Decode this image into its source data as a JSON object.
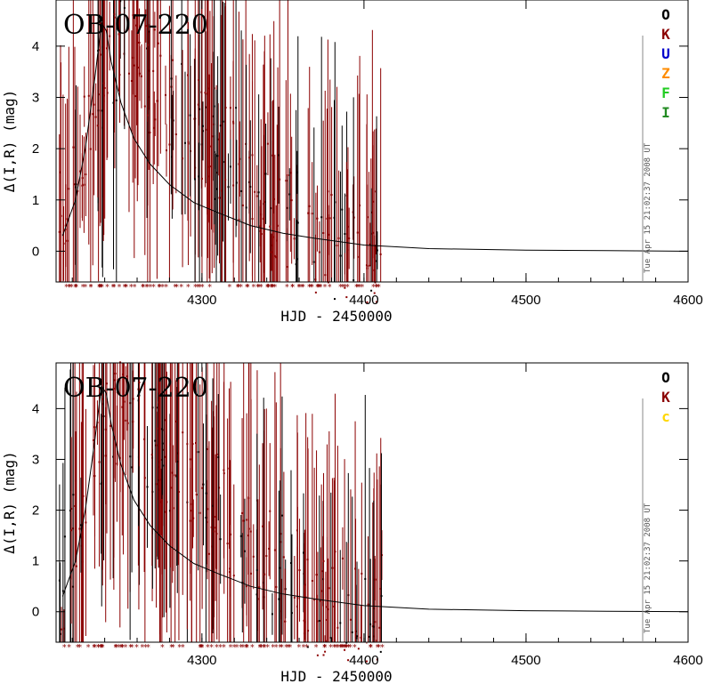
{
  "chart_data": [
    {
      "type": "scatter",
      "title": "OB-07-220",
      "xlabel": "HJD - 2450000",
      "ylabel": "Δ(I,R) (mag)",
      "xlim": [
        4210,
        4600
      ],
      "ylim": [
        -0.6,
        4.9
      ],
      "x_ticks": [
        "4300",
        "4400",
        "4500",
        "4600"
      ],
      "y_ticks": [
        "0",
        "1",
        "2",
        "3",
        "4"
      ],
      "timestamp": "Tue Apr 15 21:02:37 2008 UT",
      "legend": [
        {
          "label": "O",
          "color": "#000000"
        },
        {
          "label": "K",
          "color": "#8b0000"
        },
        {
          "label": "U",
          "color": "#0000cc"
        },
        {
          "label": "Z",
          "color": "#ff8c00"
        },
        {
          "label": "F",
          "color": "#22cc22"
        },
        {
          "label": "I",
          "color": "#228b22"
        }
      ],
      "model_curve": {
        "x": [
          4214,
          4222,
          4228,
          4234,
          4238,
          4241,
          4244,
          4250,
          4258,
          4268,
          4280,
          4295,
          4310,
          4330,
          4350,
          4370,
          4400,
          4440,
          4500,
          4550,
          4600
        ],
        "y": [
          0.3,
          1.0,
          2.0,
          3.4,
          4.45,
          4.3,
          3.7,
          2.9,
          2.2,
          1.7,
          1.3,
          0.95,
          0.75,
          0.5,
          0.35,
          0.25,
          0.12,
          0.05,
          0.02,
          0.01,
          0.0
        ]
      },
      "seed": 7
    },
    {
      "type": "scatter",
      "title": "OB-07-220",
      "xlabel": "HJD - 2450000",
      "ylabel": "Δ(I,R) (mag)",
      "xlim": [
        4210,
        4600
      ],
      "ylim": [
        -0.6,
        4.9
      ],
      "x_ticks": [
        "4300",
        "4400",
        "4500",
        "4600"
      ],
      "y_ticks": [
        "0",
        "1",
        "2",
        "3",
        "4"
      ],
      "timestamp": "Tue Apr 15 21:02:37 2008 UT",
      "legend": [
        {
          "label": "O",
          "color": "#000000"
        },
        {
          "label": "K",
          "color": "#8b0000"
        },
        {
          "label": "c",
          "color": "#ffd700"
        }
      ],
      "model_curve": {
        "x": [
          4214,
          4222,
          4228,
          4234,
          4238,
          4241,
          4244,
          4250,
          4258,
          4268,
          4280,
          4295,
          4310,
          4330,
          4350,
          4370,
          4400,
          4440,
          4500,
          4550,
          4600
        ],
        "y": [
          0.3,
          1.0,
          2.0,
          3.4,
          4.45,
          4.3,
          3.7,
          2.9,
          2.2,
          1.7,
          1.3,
          0.95,
          0.75,
          0.5,
          0.35,
          0.25,
          0.12,
          0.05,
          0.02,
          0.01,
          0.0
        ]
      },
      "seed": 11
    }
  ]
}
